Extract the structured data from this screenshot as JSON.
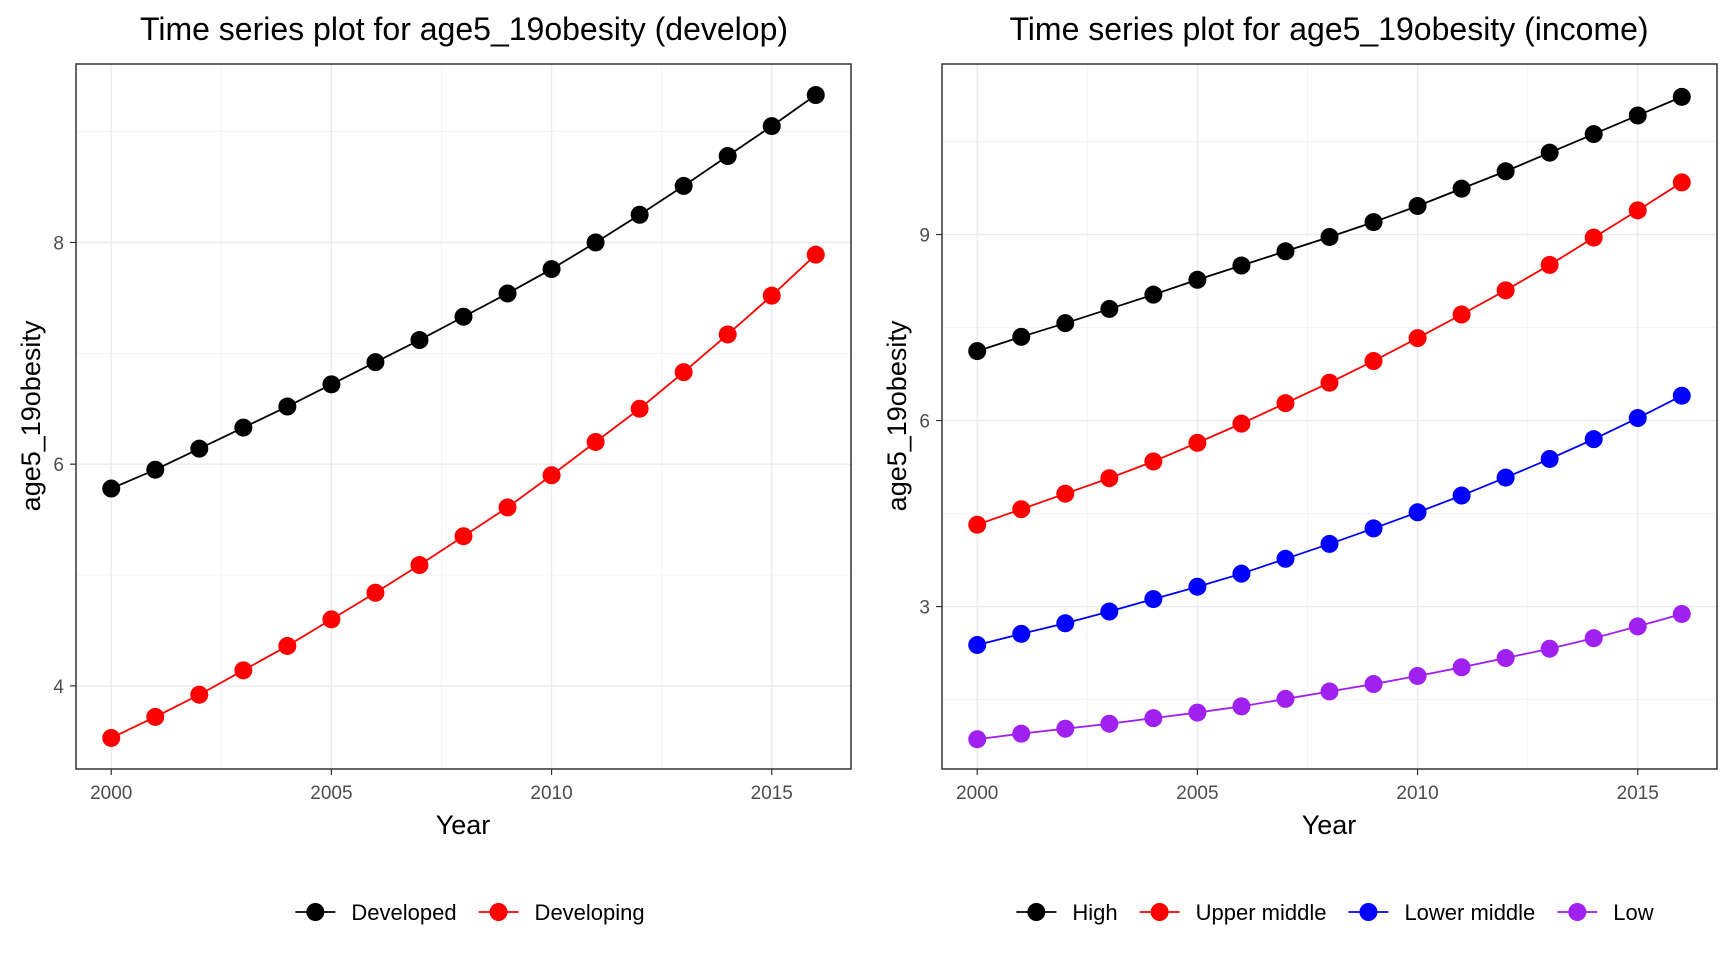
{
  "chart_data": [
    {
      "type": "line",
      "title": "Time series plot for age5_19obesity (develop)",
      "xlabel": "Year",
      "ylabel": "age5_19obesity",
      "x": [
        2000,
        2001,
        2002,
        2003,
        2004,
        2005,
        2006,
        2007,
        2008,
        2009,
        2010,
        2011,
        2012,
        2013,
        2014,
        2015,
        2016
      ],
      "xlim": [
        1999.2,
        2016.8
      ],
      "ylim": [
        3.25,
        9.61
      ],
      "xticks": [
        2000,
        2005,
        2010,
        2015
      ],
      "xtick_labels": [
        "2000",
        "2005",
        "2010",
        "2015"
      ],
      "yticks": [
        4,
        6,
        8
      ],
      "ytick_labels": [
        "4",
        "6",
        "8"
      ],
      "grid": true,
      "legend_position": "bottom",
      "series": [
        {
          "name": "Developed",
          "color": "#000000",
          "values": [
            5.78,
            5.95,
            6.14,
            6.33,
            6.52,
            6.72,
            6.92,
            7.12,
            7.33,
            7.54,
            7.76,
            8.0,
            8.25,
            8.51,
            8.78,
            9.05,
            9.33
          ]
        },
        {
          "name": "Developing",
          "color": "#ff0000",
          "values": [
            3.53,
            3.72,
            3.92,
            4.14,
            4.36,
            4.6,
            4.84,
            5.09,
            5.35,
            5.61,
            5.9,
            6.2,
            6.5,
            6.83,
            7.17,
            7.52,
            7.89
          ]
        }
      ]
    },
    {
      "type": "line",
      "title": "Time series plot for age5_19obesity (income)",
      "xlabel": "Year",
      "ylabel": "age5_19obesity",
      "x": [
        2000,
        2001,
        2002,
        2003,
        2004,
        2005,
        2006,
        2007,
        2008,
        2009,
        2010,
        2011,
        2012,
        2013,
        2014,
        2015,
        2016
      ],
      "xlim": [
        1999.2,
        2016.8
      ],
      "ylim": [
        0.38,
        11.75
      ],
      "xticks": [
        2000,
        2005,
        2010,
        2015
      ],
      "xtick_labels": [
        "2000",
        "2005",
        "2010",
        "2015"
      ],
      "yticks": [
        3,
        6,
        9
      ],
      "ytick_labels": [
        "3",
        "6",
        "9"
      ],
      "grid": true,
      "legend_position": "bottom",
      "series": [
        {
          "name": "High",
          "color": "#000000",
          "values": [
            7.12,
            7.35,
            7.57,
            7.8,
            8.03,
            8.27,
            8.5,
            8.73,
            8.96,
            9.2,
            9.46,
            9.74,
            10.02,
            10.32,
            10.62,
            10.92,
            11.22
          ]
        },
        {
          "name": "Upper middle",
          "color": "#ff0000",
          "values": [
            4.32,
            4.57,
            4.82,
            5.07,
            5.34,
            5.64,
            5.95,
            6.28,
            6.61,
            6.96,
            7.33,
            7.71,
            8.1,
            8.51,
            8.95,
            9.39,
            9.84
          ]
        },
        {
          "name": "Lower middle",
          "color": "#0000ff",
          "values": [
            2.38,
            2.56,
            2.73,
            2.92,
            3.12,
            3.32,
            3.53,
            3.77,
            4.01,
            4.26,
            4.52,
            4.79,
            5.08,
            5.38,
            5.7,
            6.04,
            6.4
          ]
        },
        {
          "name": "Low",
          "color": "#a020f0",
          "values": [
            0.86,
            0.95,
            1.03,
            1.11,
            1.2,
            1.29,
            1.39,
            1.51,
            1.63,
            1.75,
            1.88,
            2.02,
            2.17,
            2.32,
            2.49,
            2.68,
            2.88
          ]
        }
      ]
    }
  ]
}
